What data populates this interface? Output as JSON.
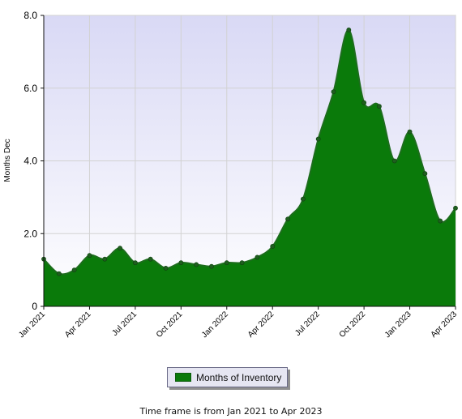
{
  "chart_data": {
    "type": "area",
    "title": "",
    "subtitle": "",
    "xlabel": "",
    "ylabel": "Months Dec",
    "ylim": [
      0,
      8
    ],
    "grid": true,
    "legend_position": "bottom-center",
    "x_ticks": [
      "Jan 2021",
      "Apr 2021",
      "Jul 2021",
      "Oct 2021",
      "Jan 2022",
      "Apr 2022",
      "Jul 2022",
      "Oct 2022",
      "Jan 2023",
      "Apr 2023"
    ],
    "y_ticks": [
      "0",
      "2.0",
      "4.0",
      "6.0",
      "8.0"
    ],
    "x": [
      "Jan 2021",
      "Feb 2021",
      "Mar 2021",
      "Apr 2021",
      "May 2021",
      "Jun 2021",
      "Jul 2021",
      "Aug 2021",
      "Sep 2021",
      "Oct 2021",
      "Nov 2021",
      "Dec 2021",
      "Jan 2022",
      "Feb 2022",
      "Mar 2022",
      "Apr 2022",
      "May 2022",
      "Jun 2022",
      "Jul 2022",
      "Aug 2022",
      "Sep 2022",
      "Oct 2022",
      "Nov 2022",
      "Dec 2022",
      "Jan 2023",
      "Feb 2023",
      "Mar 2023",
      "Apr 2023"
    ],
    "series": [
      {
        "name": "Months of Inventory",
        "color": "#0a7a0a",
        "values": [
          1.3,
          0.9,
          1.0,
          1.4,
          1.3,
          1.6,
          1.2,
          1.3,
          1.05,
          1.2,
          1.15,
          1.1,
          1.2,
          1.2,
          1.35,
          1.65,
          2.4,
          2.95,
          4.6,
          5.9,
          7.6,
          5.6,
          5.5,
          4.0,
          4.8,
          3.65,
          2.35,
          2.7
        ]
      }
    ]
  },
  "legend": {
    "label": "Months of Inventory"
  },
  "footer": {
    "text": "Time frame is from Jan 2021 to Apr 2023"
  },
  "colors": {
    "plot_top": "#d9d9f5",
    "plot_bottom": "#ffffff",
    "area_fill": "#0a7a0a",
    "area_stroke": "#1d6d1d",
    "grid": "#d2d2d2",
    "axis": "#111111"
  }
}
